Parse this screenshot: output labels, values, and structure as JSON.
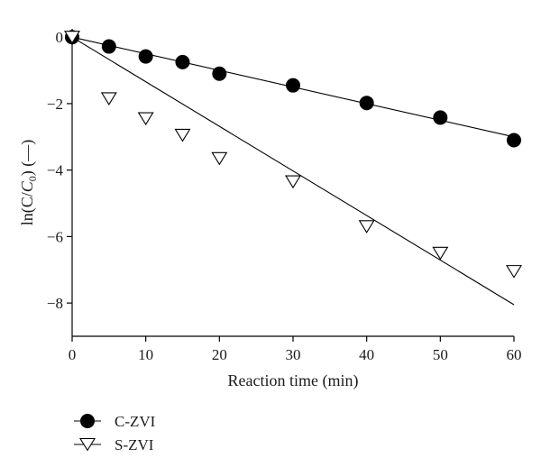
{
  "chart_data": {
    "type": "scatter",
    "xlabel": "Reaction time (min)",
    "ylabel": "ln(C/C0) (—)",
    "ylabel_parts": {
      "prefix": "ln(C/",
      "symbol": "C",
      "subscript": "0",
      "suffix": ") (—)"
    },
    "xlim": [
      0,
      60
    ],
    "ylim": [
      -9,
      0.25
    ],
    "xticks": [
      0,
      10,
      20,
      30,
      40,
      50,
      60
    ],
    "yticks": [
      0,
      -2,
      -4,
      -6,
      -8
    ],
    "xtick_labels": [
      "0",
      "10",
      "20",
      "30",
      "40",
      "50",
      "60"
    ],
    "ytick_labels": [
      "0",
      "−2",
      "−4",
      "−6",
      "−8"
    ],
    "grid": false,
    "legend_position": "bottom-left",
    "series": [
      {
        "name": "C-ZVI",
        "marker": "filled-circle",
        "color": "#000000",
        "x": [
          0,
          5,
          10,
          15,
          20,
          30,
          40,
          50,
          60
        ],
        "y": [
          0,
          -0.28,
          -0.58,
          -0.75,
          -1.1,
          -1.45,
          -1.98,
          -2.42,
          -3.1
        ],
        "fit_line": {
          "x": [
            0,
            60
          ],
          "y": [
            0,
            -3.0
          ]
        }
      },
      {
        "name": "S-ZVI",
        "marker": "open-triangle-down",
        "color": "#000000",
        "x": [
          0,
          5,
          10,
          15,
          20,
          30,
          40,
          50,
          60
        ],
        "y": [
          0,
          -1.85,
          -2.45,
          -2.95,
          -3.65,
          -4.35,
          -5.7,
          -6.5,
          -7.05
        ],
        "fit_line": {
          "x": [
            0,
            60
          ],
          "y": [
            0,
            -8.05
          ]
        }
      }
    ]
  }
}
